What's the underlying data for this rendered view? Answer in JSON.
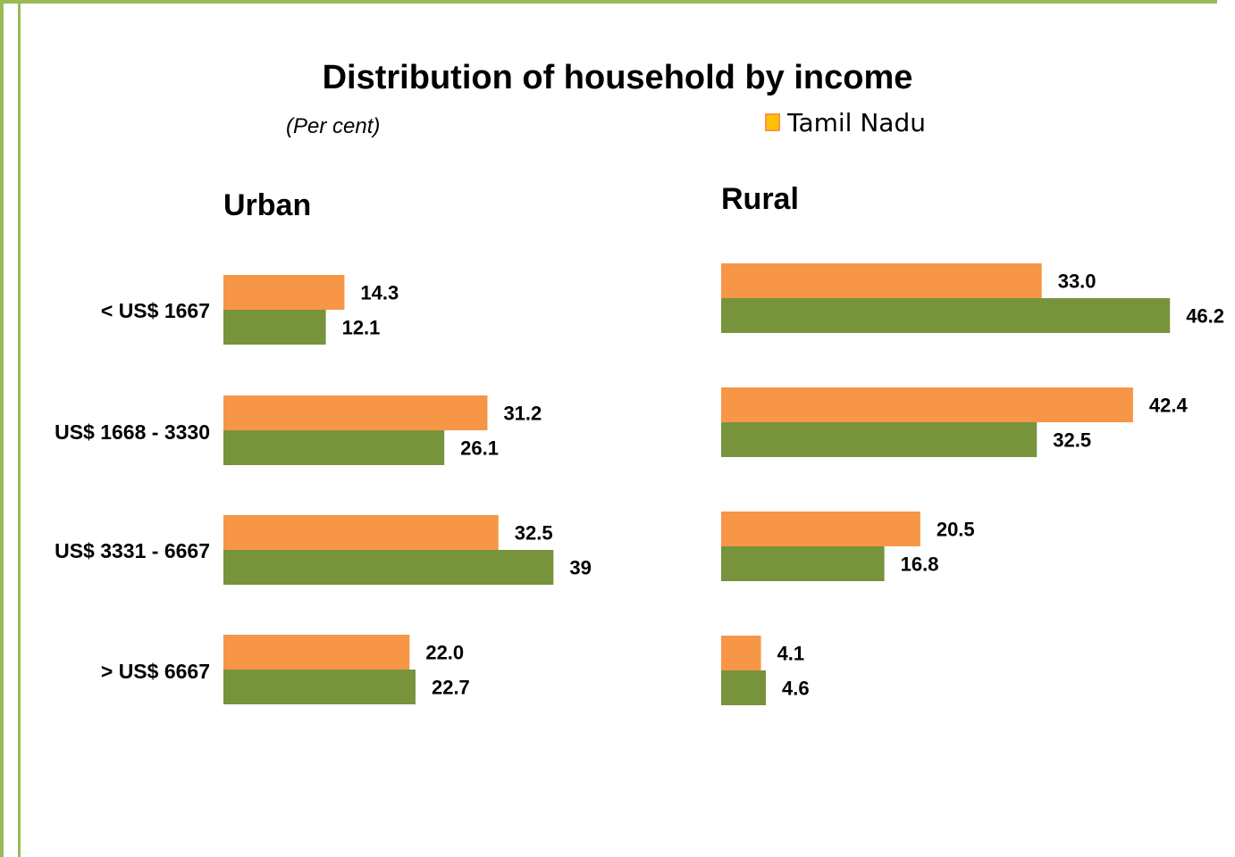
{
  "chart_data": {
    "type": "bar",
    "orientation": "horizontal",
    "title": "Distribution of household by income",
    "subtitle": "(Per cent)",
    "legend": {
      "entries": [
        "Tamil Nadu"
      ],
      "placement": "top-right"
    },
    "categories": [
      "< US$ 1667",
      "US$ 1668 - 3330",
      "US$ 3331 - 6667",
      "> US$ 6667"
    ],
    "colors": {
      "series_a": "#F79646",
      "series_b": "#77933C",
      "legend_swatch": "#FFC000"
    },
    "panels": [
      {
        "title": "Urban",
        "series": [
          {
            "values": [
              14.3,
              31.2,
              32.5,
              22.0
            ],
            "labels": [
              "14.3",
              "31.2",
              "32.5",
              "22.0"
            ]
          },
          {
            "values": [
              12.1,
              26.1,
              39,
              22.7
            ],
            "labels": [
              "12.1",
              "26.1",
              "39",
              "22.7"
            ]
          }
        ]
      },
      {
        "title": "Rural",
        "series": [
          {
            "values": [
              33.0,
              42.4,
              20.5,
              4.1
            ],
            "labels": [
              "33.0",
              "42.4",
              "20.5",
              "4.1"
            ]
          },
          {
            "values": [
              46.2,
              32.5,
              16.8,
              4.6
            ],
            "labels": [
              "46.2",
              "32.5",
              "16.8",
              "4.6"
            ]
          }
        ]
      }
    ],
    "grid": false
  }
}
